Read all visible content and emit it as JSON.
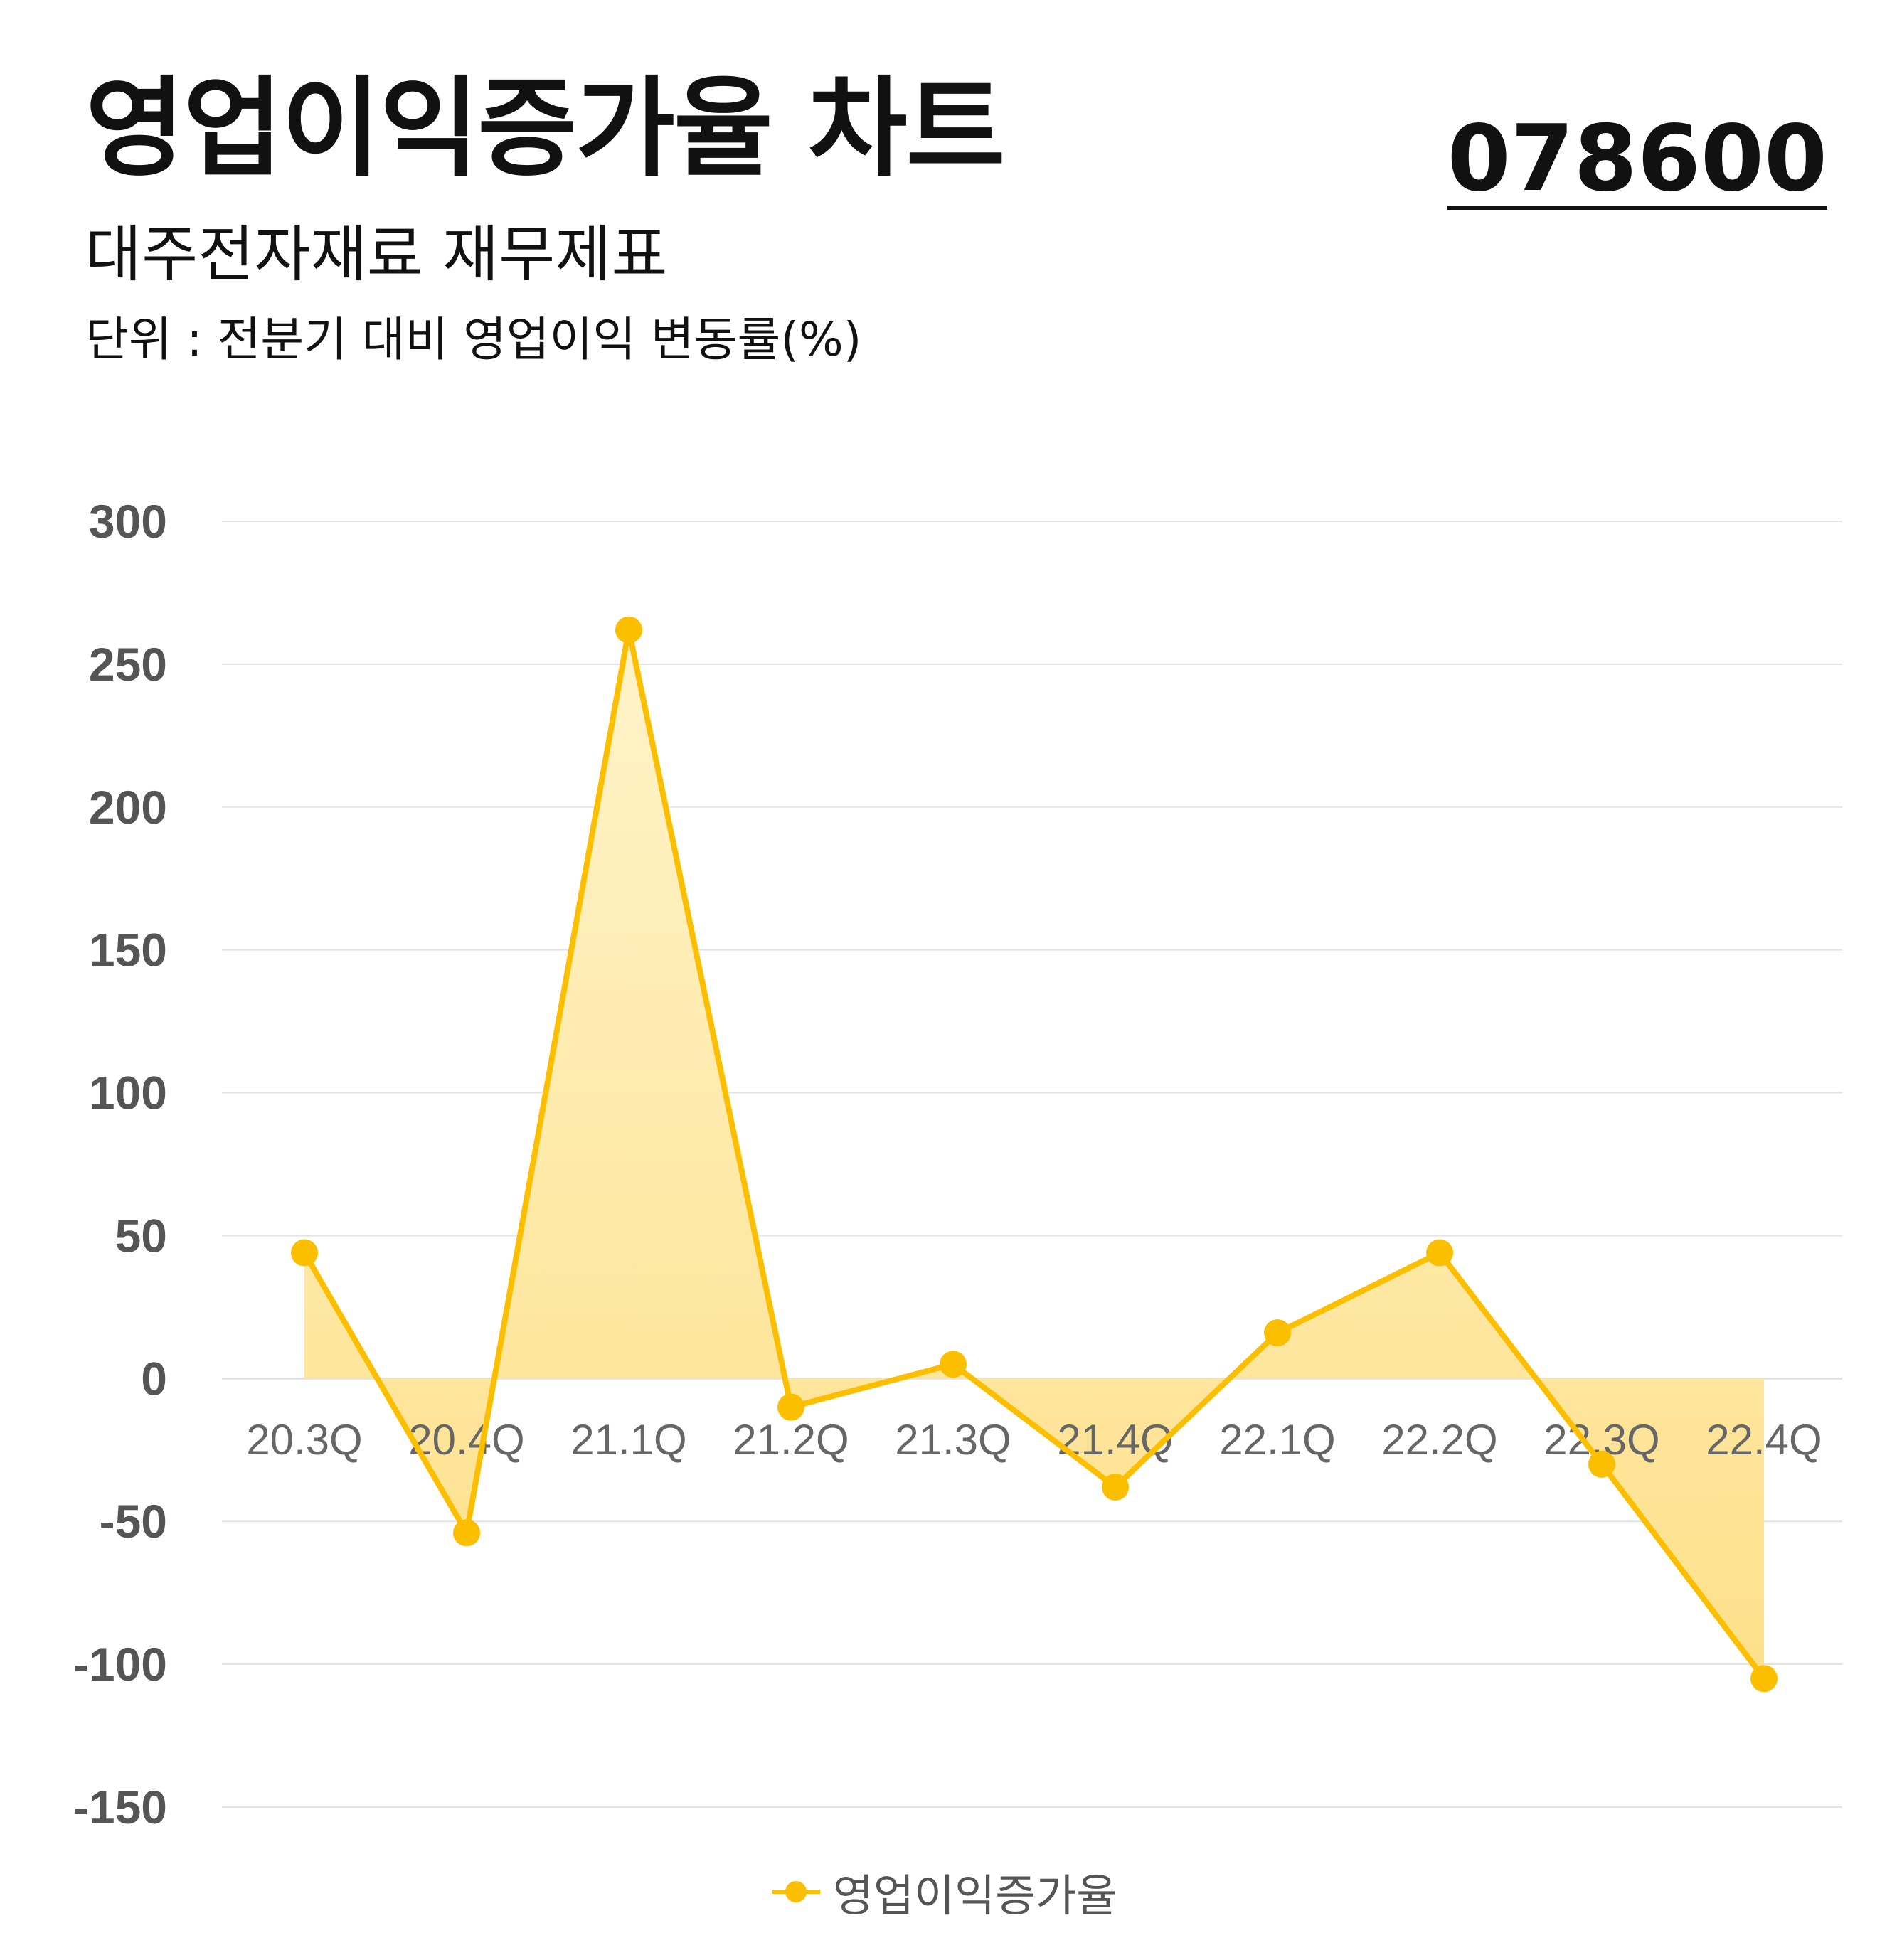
{
  "header": {
    "title": "영업이익증가율 차트",
    "ticker": "078600",
    "subtitle": "대주전자재료 재무제표",
    "unit": "단위 : 전분기 대비 영업이익 변동률(%)"
  },
  "colors": {
    "line": "#FBBF00",
    "fill_top": "#FFF3C9",
    "fill_bottom": "#FDE08A",
    "grid": "#E3E3E3"
  },
  "chart_data": {
    "type": "area",
    "categories": [
      "20.3Q",
      "20.4Q",
      "21.1Q",
      "21.2Q",
      "21.3Q",
      "21.4Q",
      "22.1Q",
      "22.2Q",
      "22.3Q",
      "22.4Q"
    ],
    "series": [
      {
        "name": "영업이익증가율",
        "values": [
          44,
          -54,
          262,
          -10,
          5,
          -38,
          16,
          44,
          -30,
          -105
        ]
      }
    ],
    "ylim": [
      -150,
      300
    ],
    "yticks": [
      300,
      250,
      200,
      150,
      100,
      50,
      0,
      -50,
      -100,
      -150
    ],
    "grid": true,
    "legend": "bottom-center"
  }
}
